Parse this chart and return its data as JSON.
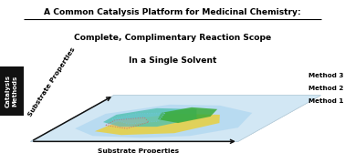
{
  "title_line1": "A Common Catalysis Platform for Medicinal Chemistry:",
  "title_line2": "Complete, Complimentary Reaction Scope",
  "title_line3": "In a Single Solvent",
  "title_bg_color": "#c8f5ec",
  "panel_bg": "#ffffff",
  "label_axis_bottom": "Substrate Properties",
  "label_axis_diag": "Substrate Properties",
  "label_y_line1": "Catalysis",
  "label_y_line2": "Methods",
  "method_labels": [
    "Method 3",
    "Method 2",
    "Method 1"
  ],
  "arrow_color": "#111111",
  "method_box_color": "#111111",
  "method_text_color": "#ffffff",
  "layer_colors": [
    "#d0e8f5",
    "#c0dff0",
    "#b0d5ec"
  ],
  "blob_blue_outer": "#aed6f1",
  "blob_teal": "#50c0b0",
  "blob_green": "#3aab3a",
  "blob_yellow": "#e8d040",
  "blob_dot_teal": "#70c8d8",
  "blob_dot_red": "#e8a0a0",
  "figsize": [
    3.78,
    1.68
  ],
  "dpi": 100
}
